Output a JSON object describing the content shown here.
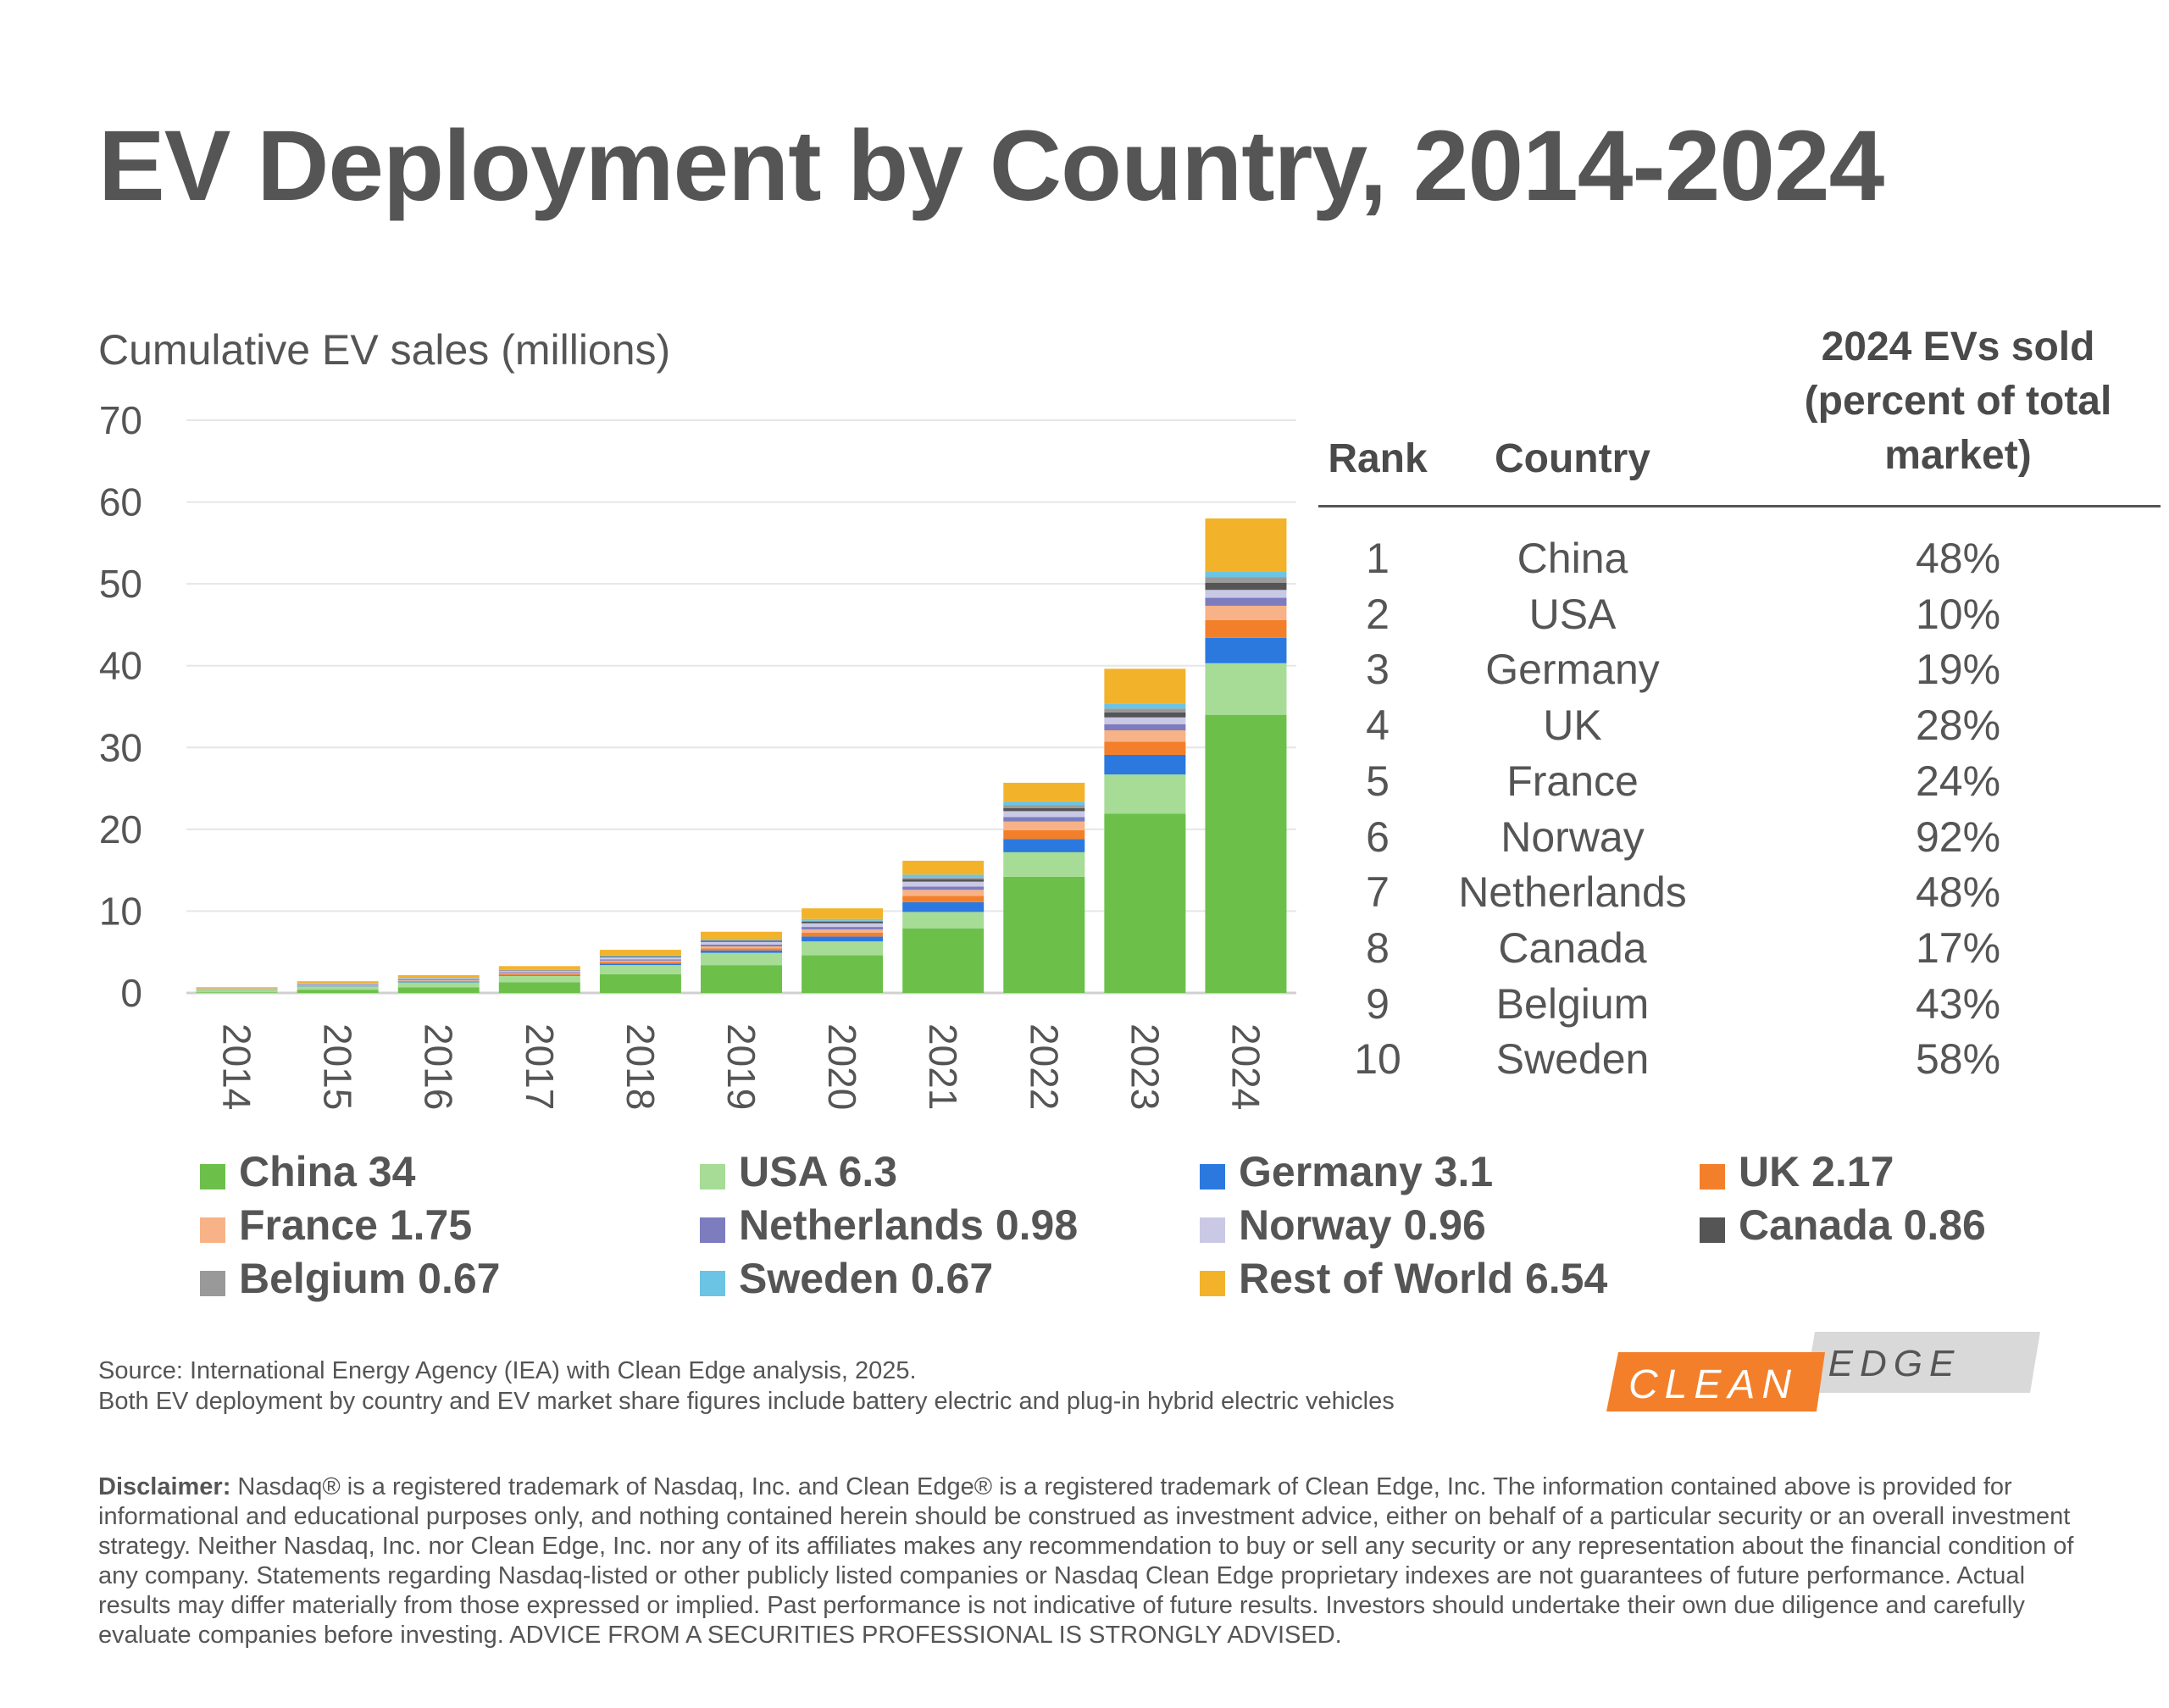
{
  "title": "EV Deployment by Country, 2014-2024",
  "chart_data": {
    "type": "bar",
    "stacked": true,
    "title": "EV Deployment by Country, 2014-2024",
    "ylabel": "Cumulative EV sales (millions)",
    "xlabel": "",
    "ylim": [
      0,
      70
    ],
    "yticks": [
      0,
      10,
      20,
      30,
      40,
      50,
      60,
      70
    ],
    "grid": true,
    "categories": [
      "2014",
      "2015",
      "2016",
      "2017",
      "2018",
      "2019",
      "2020",
      "2021",
      "2022",
      "2023",
      "2024"
    ],
    "series": [
      {
        "name": "China",
        "color": "#6cc04a",
        "values": [
          0.08,
          0.4,
          0.7,
          1.3,
          2.3,
          3.4,
          4.6,
          7.9,
          14.2,
          21.9,
          34
        ]
      },
      {
        "name": "USA",
        "color": "#a6dc95",
        "values": [
          0.3,
          0.4,
          0.6,
          0.8,
          1.1,
          1.5,
          1.7,
          2.0,
          3.0,
          4.8,
          6.3
        ]
      },
      {
        "name": "Germany",
        "color": "#2b79df",
        "values": [
          0.02,
          0.05,
          0.07,
          0.1,
          0.2,
          0.3,
          0.6,
          1.2,
          1.6,
          2.4,
          3.1
        ]
      },
      {
        "name": "UK",
        "color": "#f47f2a",
        "values": [
          0.02,
          0.05,
          0.09,
          0.13,
          0.18,
          0.26,
          0.45,
          0.75,
          1.1,
          1.6,
          2.17
        ]
      },
      {
        "name": "France",
        "color": "#f7b287",
        "values": [
          0.03,
          0.06,
          0.09,
          0.12,
          0.17,
          0.23,
          0.42,
          0.75,
          1.05,
          1.4,
          1.75
        ]
      },
      {
        "name": "Netherlands",
        "color": "#7c7cbf",
        "values": [
          0.04,
          0.09,
          0.11,
          0.12,
          0.15,
          0.22,
          0.3,
          0.4,
          0.55,
          0.75,
          0.98
        ]
      },
      {
        "name": "Norway",
        "color": "#c9c9e5",
        "values": [
          0.04,
          0.08,
          0.13,
          0.18,
          0.25,
          0.33,
          0.44,
          0.6,
          0.72,
          0.83,
          0.96
        ]
      },
      {
        "name": "Canada",
        "color": "#555555",
        "values": [
          0.01,
          0.02,
          0.03,
          0.05,
          0.09,
          0.14,
          0.19,
          0.28,
          0.38,
          0.6,
          0.86
        ]
      },
      {
        "name": "Belgium",
        "color": "#999999",
        "values": [
          0.01,
          0.01,
          0.02,
          0.03,
          0.05,
          0.07,
          0.12,
          0.22,
          0.33,
          0.48,
          0.67
        ]
      },
      {
        "name": "Sweden",
        "color": "#6cc4e4",
        "values": [
          0.01,
          0.02,
          0.03,
          0.05,
          0.08,
          0.13,
          0.22,
          0.36,
          0.46,
          0.56,
          0.67
        ]
      },
      {
        "name": "Rest of World",
        "color": "#f2b32b",
        "values": [
          0.14,
          0.25,
          0.3,
          0.4,
          0.7,
          0.9,
          1.3,
          1.7,
          2.3,
          4.3,
          6.54
        ]
      }
    ]
  },
  "legend": [
    {
      "label": "China 34",
      "color": "#6cc04a"
    },
    {
      "label": "USA 6.3",
      "color": "#a6dc95"
    },
    {
      "label": "Germany 3.1",
      "color": "#2b79df"
    },
    {
      "label": "UK 2.17",
      "color": "#f47f2a"
    },
    {
      "label": "France 1.75",
      "color": "#f7b287"
    },
    {
      "label": "Netherlands 0.98",
      "color": "#7c7cbf"
    },
    {
      "label": "Norway 0.96",
      "color": "#c9c9e5"
    },
    {
      "label": "Canada 0.86",
      "color": "#555555"
    },
    {
      "label": "Belgium 0.67",
      "color": "#999999"
    },
    {
      "label": "Sweden 0.67",
      "color": "#6cc4e4"
    },
    {
      "label": "Rest of World 6.54",
      "color": "#f2b32b"
    }
  ],
  "table": {
    "headers": {
      "rank": "Rank",
      "country": "Country",
      "pct_line1": "2024 EVs sold",
      "pct_line2": "(percent of total",
      "pct_line3": "market)"
    },
    "rows": [
      {
        "rank": "1",
        "country": "China",
        "pct": "48%"
      },
      {
        "rank": "2",
        "country": "USA",
        "pct": "10%"
      },
      {
        "rank": "3",
        "country": "Germany",
        "pct": "19%"
      },
      {
        "rank": "4",
        "country": "UK",
        "pct": "28%"
      },
      {
        "rank": "5",
        "country": "France",
        "pct": "24%"
      },
      {
        "rank": "6",
        "country": "Norway",
        "pct": "92%"
      },
      {
        "rank": "7",
        "country": "Netherlands",
        "pct": "48%"
      },
      {
        "rank": "8",
        "country": "Canada",
        "pct": "17%"
      },
      {
        "rank": "9",
        "country": "Belgium",
        "pct": "43%"
      },
      {
        "rank": "10",
        "country": "Sweden",
        "pct": "58%"
      }
    ]
  },
  "source": {
    "line1": "Source: International Energy Agency (IEA) with Clean Edge analysis, 2025.",
    "line2": "Both EV deployment by country and EV market share figures include battery electric and plug-in hybrid electric vehicles"
  },
  "logo": {
    "word1": "CLEAN",
    "word2": "EDGE",
    "color1": "#f47f2a",
    "color2": "#d9d9d9"
  },
  "disclaimer": {
    "label": "Disclaimer:",
    "text": " Nasdaq® is a registered trademark of Nasdaq, Inc. and Clean Edge® is a registered trademark of Clean Edge, Inc. The information contained above is provided for informational and educational purposes only, and nothing contained herein should be construed as investment advice, either on behalf of a particular security or an overall investment strategy. Neither Nasdaq, Inc. nor Clean Edge, Inc. nor any of its affiliates makes any recommendation to buy or sell any security or any representation about the financial condition of any company. Statements regarding Nasdaq-listed or other publicly listed companies or Nasdaq Clean Edge proprietary indexes are not guarantees of future performance. Actual results may differ materially from those expressed or implied. Past performance is not indicative of future results. Investors should undertake their own due diligence and carefully evaluate companies before investing.  ADVICE FROM A SECURITIES PROFESSIONAL IS STRONGLY ADVISED."
  }
}
